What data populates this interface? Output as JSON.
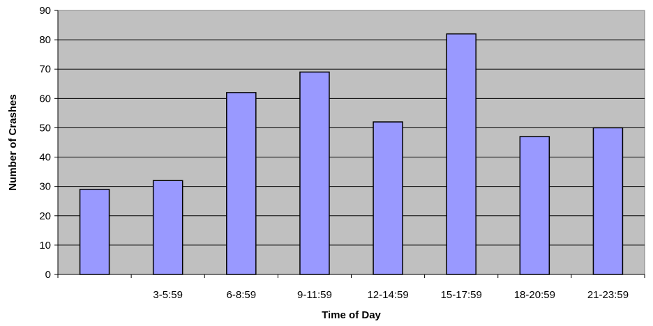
{
  "chart_data": {
    "type": "bar",
    "title": "",
    "xlabel": "Time of Day",
    "ylabel": "Number of Crashes",
    "categories": [
      "",
      "3-5:59",
      "6-8:59",
      "9-11:59",
      "12-14:59",
      "15-17:59",
      "18-20:59",
      "21-23:59"
    ],
    "values": [
      29,
      32,
      62,
      69,
      52,
      82,
      47,
      50
    ],
    "ylim": [
      0,
      90
    ],
    "yticks": [
      0,
      10,
      20,
      30,
      40,
      50,
      60,
      70,
      80,
      90
    ],
    "grid": true,
    "legend": "none",
    "colors": {
      "plot_background": "#c0c0c0",
      "bar_fill": "#9999ff",
      "bar_stroke": "#000000",
      "gridline": "#000000"
    }
  }
}
